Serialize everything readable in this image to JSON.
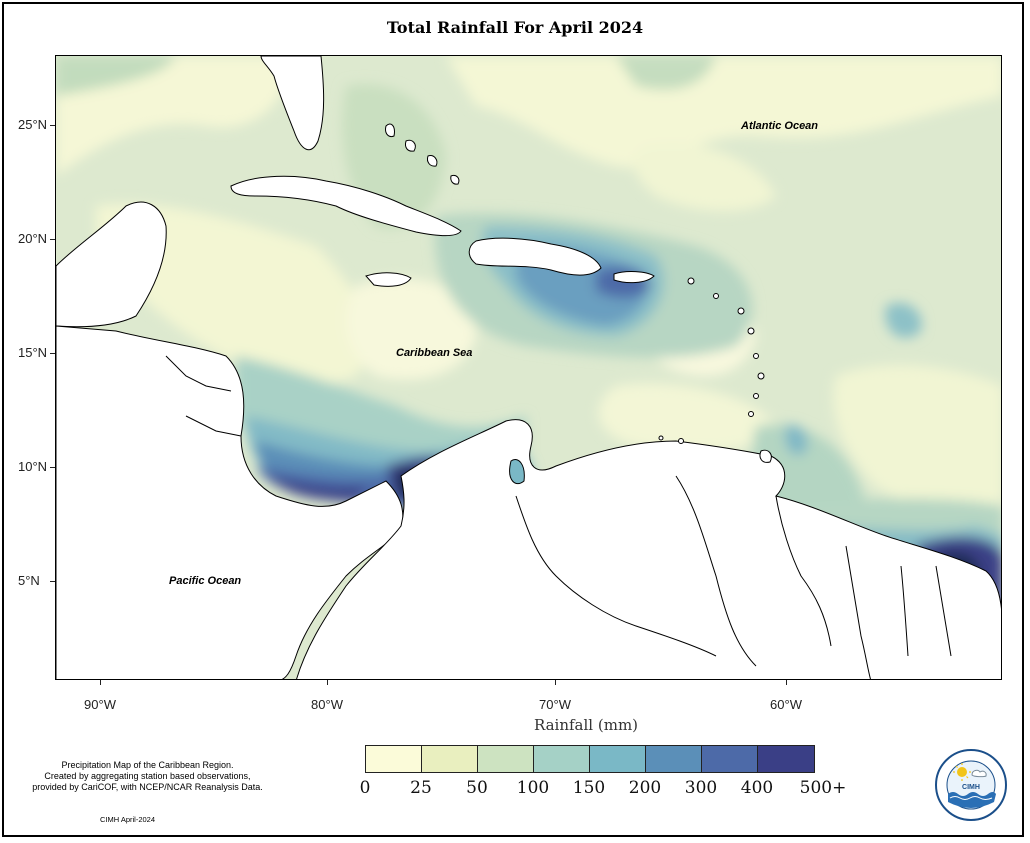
{
  "title": "Total Rainfall For April 2024",
  "map": {
    "labels": {
      "atlantic": "Atlantic Ocean",
      "caribbean": "Caribbean Sea",
      "pacific": "Pacific Ocean"
    },
    "lat_ticks": [
      "25°N",
      "20°N",
      "15°N",
      "10°N",
      "5°N"
    ],
    "lon_ticks": [
      "90°W",
      "80°W",
      "70°W",
      "60°W"
    ],
    "axis_title": "Rainfall (mm)",
    "colors": {
      "land": "#ffffff",
      "coast": "#000000"
    }
  },
  "legend": {
    "labels": [
      "0",
      "25",
      "50",
      "100",
      "150",
      "200",
      "300",
      "400",
      "500+"
    ],
    "colors": [
      "#fbfbd9",
      "#e9efbf",
      "#cde3c1",
      "#a5d1c6",
      "#7ab8c6",
      "#5b8fb8",
      "#4d6aa8",
      "#3a3f86",
      "#1f2b52"
    ]
  },
  "footer": {
    "note_lines": [
      "Precipitation Map of the Caribbean Region.",
      "Created by aggregating station based observations,",
      "provided by CariCOF, with NCEP/NCAR Reanalysis Data."
    ],
    "credit": "CIMH April-2024"
  },
  "logo": {
    "text": "CIMH",
    "icon": "cimh-logo-icon"
  }
}
